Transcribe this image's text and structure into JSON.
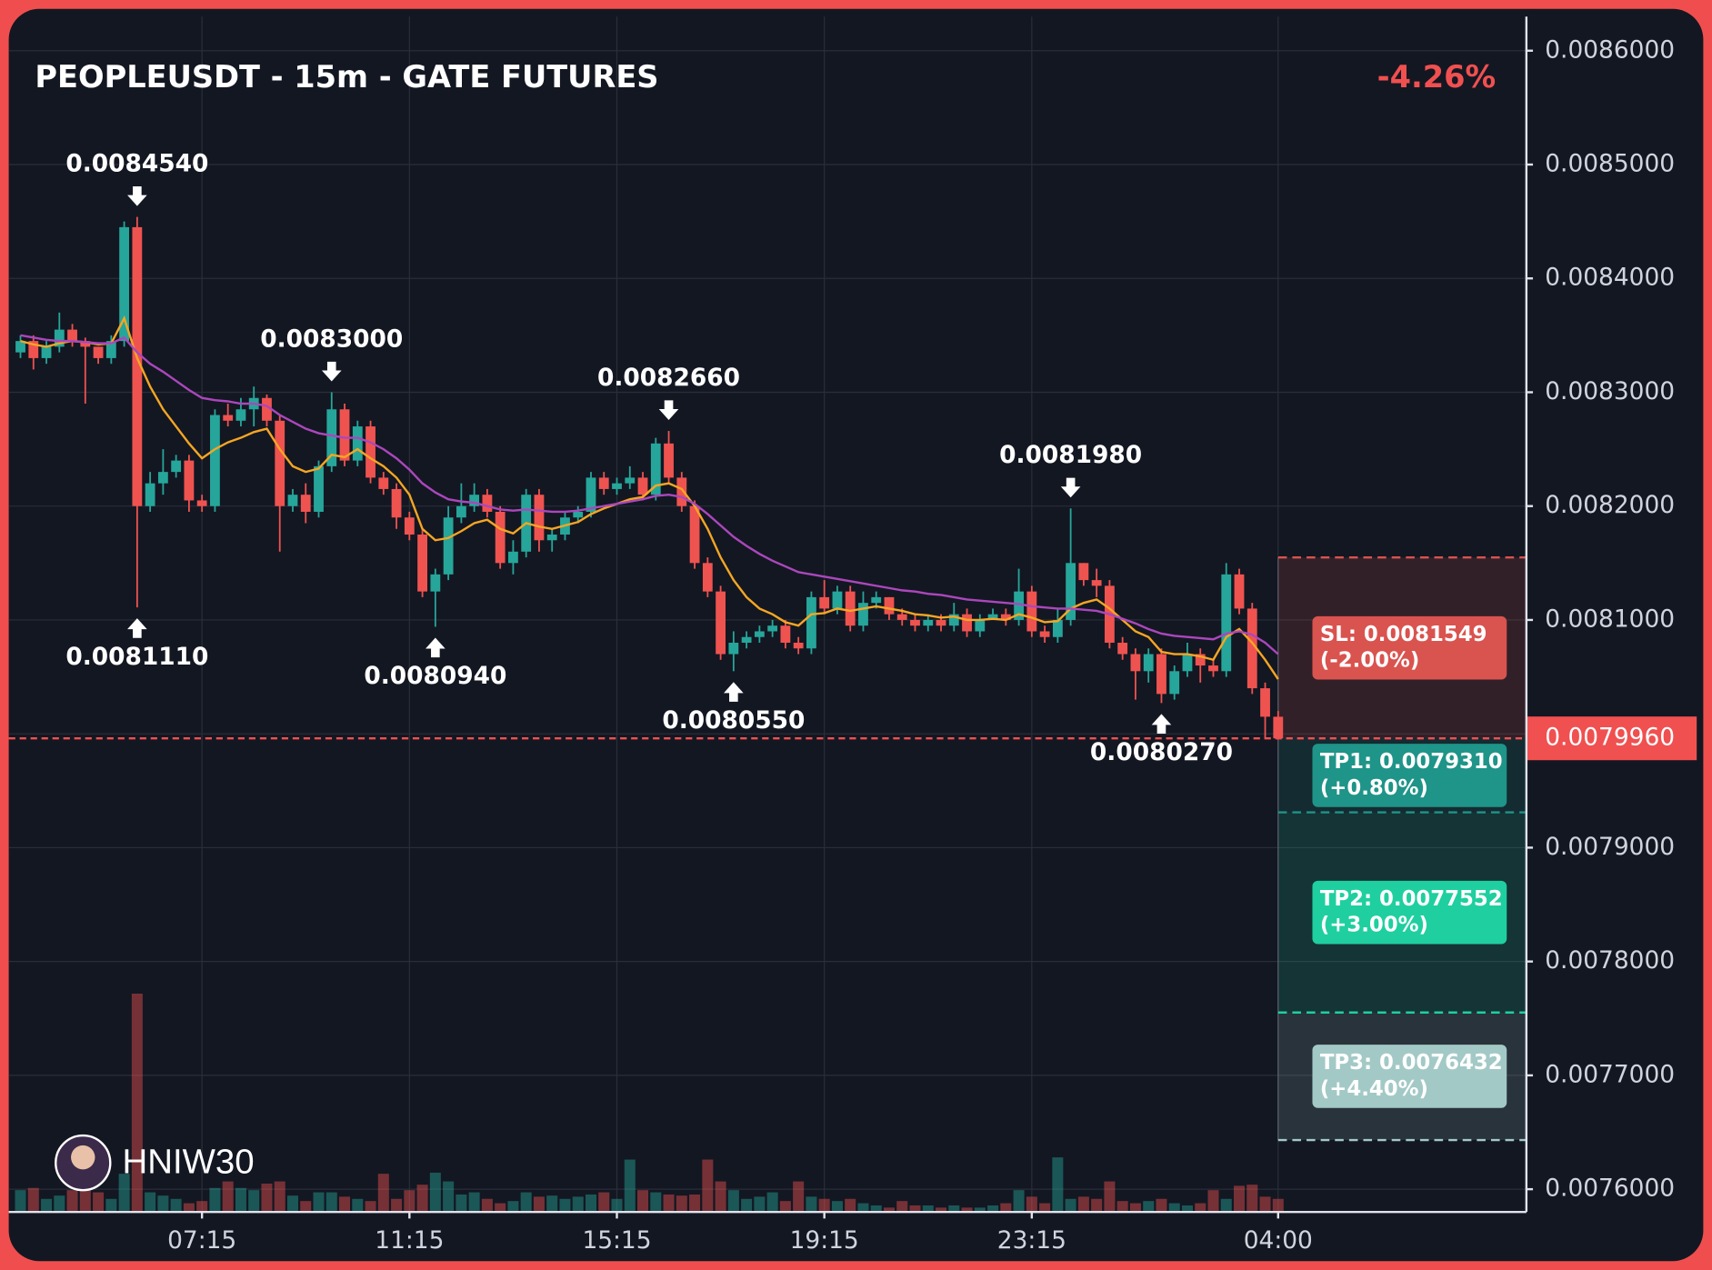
{
  "chart_data": {
    "type": "candlestick",
    "title": "PEOPLEUSDT - 15m - GATE FUTURES",
    "change": "-4.26%",
    "watermark": "HNIW30",
    "up_color": "#26a69a",
    "down_color": "#ef5350",
    "grid": true,
    "categories": [
      null,
      null,
      null,
      null,
      null,
      null,
      null,
      null,
      null,
      null,
      null,
      null,
      null,
      null,
      "07:15",
      null,
      null,
      null,
      null,
      null,
      null,
      null,
      null,
      null,
      null,
      null,
      null,
      null,
      null,
      null,
      "11:15",
      null,
      null,
      null,
      null,
      null,
      null,
      null,
      null,
      null,
      null,
      null,
      null,
      null,
      null,
      null,
      "15:15",
      null,
      null,
      null,
      null,
      null,
      null,
      null,
      null,
      null,
      null,
      null,
      null,
      null,
      null,
      null,
      "19:15",
      null,
      null,
      null,
      null,
      null,
      null,
      null,
      null,
      null,
      null,
      null,
      null,
      null,
      null,
      null,
      "23:15",
      null,
      null,
      null,
      null,
      null,
      null,
      null,
      null,
      null,
      null,
      null,
      null,
      null,
      null,
      null,
      null,
      null,
      null,
      "04:00"
    ],
    "open": [
      0.008335,
      0.008345,
      0.00833,
      0.00834,
      0.008355,
      0.008345,
      0.00834,
      0.00833,
      0.008345,
      0.008445,
      0.0082,
      0.00822,
      0.00823,
      0.00824,
      0.008205,
      0.0082,
      0.00828,
      0.008275,
      0.008285,
      0.008295,
      0.008275,
      0.0082,
      0.00821,
      0.008195,
      0.008235,
      0.008285,
      0.00824,
      0.00827,
      0.008225,
      0.008215,
      0.00819,
      0.008175,
      0.008125,
      0.00814,
      0.00819,
      0.0082,
      0.00821,
      0.008195,
      0.00815,
      0.00816,
      0.00821,
      0.00817,
      0.008175,
      0.00819,
      0.008195,
      0.008225,
      0.008215,
      0.00822,
      0.008225,
      0.00821,
      0.008255,
      0.008225,
      0.0082,
      0.00815,
      0.008125,
      0.00807,
      0.00808,
      0.008085,
      0.00809,
      0.008095,
      0.00808,
      0.008075,
      0.00812,
      0.00811,
      0.008125,
      0.008095,
      0.008115,
      0.00812,
      0.008105,
      0.0081,
      0.008095,
      0.0081,
      0.008095,
      0.008105,
      0.00809,
      0.0081,
      0.008105,
      0.0081,
      0.008125,
      0.00809,
      0.008085,
      0.0081,
      0.00815,
      0.008135,
      0.00813,
      0.00808,
      0.00807,
      0.008055,
      0.00807,
      0.008035,
      0.008055,
      0.00807,
      0.00806,
      0.008055,
      0.00814,
      0.00811,
      0.00804,
      0.008015
    ],
    "high": [
      0.00835,
      0.00835,
      0.008345,
      0.00837,
      0.00836,
      0.008348,
      0.00834,
      0.00835,
      0.00845,
      0.008454,
      0.00823,
      0.00825,
      0.008245,
      0.008245,
      0.00821,
      0.008285,
      0.00829,
      0.008295,
      0.008305,
      0.008298,
      0.00828,
      0.008215,
      0.00822,
      0.00824,
      0.0083,
      0.00829,
      0.008275,
      0.008275,
      0.00823,
      0.00822,
      0.008195,
      0.00818,
      0.008145,
      0.0082,
      0.00822,
      0.00822,
      0.008215,
      0.0082,
      0.00817,
      0.008215,
      0.008215,
      0.00818,
      0.008195,
      0.0082,
      0.00823,
      0.00823,
      0.008225,
      0.008235,
      0.00823,
      0.00826,
      0.008266,
      0.00823,
      0.008205,
      0.008155,
      0.00813,
      0.00809,
      0.00809,
      0.008095,
      0.0081,
      0.0081,
      0.008085,
      0.008125,
      0.008135,
      0.00813,
      0.00813,
      0.008125,
      0.008125,
      0.00812,
      0.00811,
      0.008105,
      0.008105,
      0.008105,
      0.008115,
      0.00811,
      0.008105,
      0.00811,
      0.00811,
      0.008145,
      0.00813,
      0.008095,
      0.00811,
      0.008198,
      0.00815,
      0.008145,
      0.008135,
      0.008085,
      0.008075,
      0.008075,
      0.008075,
      0.00806,
      0.00808,
      0.008075,
      0.008065,
      0.00815,
      0.008145,
      0.008115,
      0.008045,
      0.00802
    ],
    "low": [
      0.00833,
      0.00832,
      0.008325,
      0.008335,
      0.00834,
      0.00829,
      0.008325,
      0.008325,
      0.00834,
      0.008111,
      0.008195,
      0.00821,
      0.008225,
      0.008195,
      0.008195,
      0.008195,
      0.00827,
      0.00827,
      0.00827,
      0.00827,
      0.00816,
      0.008195,
      0.008185,
      0.00819,
      0.00823,
      0.008235,
      0.008235,
      0.00822,
      0.00821,
      0.00818,
      0.00817,
      0.00812,
      0.008094,
      0.008135,
      0.008185,
      0.008195,
      0.00819,
      0.008145,
      0.00814,
      0.008155,
      0.00816,
      0.00816,
      0.00817,
      0.008185,
      0.00819,
      0.00821,
      0.00821,
      0.008215,
      0.008205,
      0.008205,
      0.00822,
      0.008195,
      0.008145,
      0.00812,
      0.008065,
      0.008055,
      0.008075,
      0.00808,
      0.008085,
      0.008075,
      0.00807,
      0.00807,
      0.008105,
      0.008105,
      0.00809,
      0.00809,
      0.00811,
      0.0081,
      0.008095,
      0.00809,
      0.00809,
      0.00809,
      0.00809,
      0.008085,
      0.008085,
      0.0081,
      0.008095,
      0.008095,
      0.008085,
      0.00808,
      0.00808,
      0.008095,
      0.00813,
      0.00812,
      0.008075,
      0.008065,
      0.00803,
      0.008045,
      0.008027,
      0.00803,
      0.00805,
      0.008045,
      0.00805,
      0.00805,
      0.008105,
      0.008035,
      0.007996,
      0.007995
    ],
    "close": [
      0.008345,
      0.00833,
      0.00834,
      0.008355,
      0.008345,
      0.00834,
      0.00833,
      0.008345,
      0.008445,
      0.0082,
      0.00822,
      0.00823,
      0.00824,
      0.008205,
      0.0082,
      0.00828,
      0.008275,
      0.008285,
      0.008295,
      0.008275,
      0.0082,
      0.00821,
      0.008195,
      0.008235,
      0.008285,
      0.00824,
      0.00827,
      0.008225,
      0.008215,
      0.00819,
      0.008175,
      0.008125,
      0.00814,
      0.00819,
      0.0082,
      0.00821,
      0.008195,
      0.00815,
      0.00816,
      0.00821,
      0.00817,
      0.008175,
      0.00819,
      0.008195,
      0.008225,
      0.008215,
      0.00822,
      0.008225,
      0.00821,
      0.008255,
      0.008225,
      0.0082,
      0.00815,
      0.008125,
      0.00807,
      0.00808,
      0.008085,
      0.00809,
      0.008095,
      0.00808,
      0.008075,
      0.00812,
      0.00811,
      0.008125,
      0.008095,
      0.008115,
      0.00812,
      0.008105,
      0.0081,
      0.008095,
      0.0081,
      0.008095,
      0.008105,
      0.00809,
      0.0081,
      0.008105,
      0.0081,
      0.008125,
      0.00809,
      0.008085,
      0.0081,
      0.00815,
      0.008135,
      0.00813,
      0.00808,
      0.00807,
      0.008055,
      0.00807,
      0.008035,
      0.008055,
      0.00807,
      0.00806,
      0.008055,
      0.00814,
      0.00811,
      0.00804,
      0.008015,
      0.007996
    ],
    "volume": [
      20,
      22,
      12,
      15,
      20,
      25,
      18,
      12,
      35,
      200,
      18,
      15,
      12,
      8,
      10,
      22,
      28,
      22,
      20,
      26,
      28,
      15,
      10,
      18,
      18,
      14,
      12,
      10,
      35,
      12,
      20,
      25,
      36,
      28,
      16,
      18,
      12,
      8,
      10,
      18,
      14,
      15,
      12,
      14,
      16,
      18,
      12,
      48,
      20,
      18,
      16,
      15,
      16,
      48,
      28,
      20,
      12,
      14,
      18,
      10,
      28,
      14,
      12,
      10,
      12,
      8,
      6,
      4,
      10,
      6,
      6,
      4,
      6,
      4,
      4,
      6,
      8,
      20,
      14,
      8,
      50,
      12,
      14,
      12,
      28,
      10,
      8,
      10,
      12,
      8,
      6,
      8,
      20,
      12,
      24,
      25,
      14,
      12
    ],
    "lines": [
      {
        "color": "#f5a623",
        "values": [
          0.008345,
          0.008342,
          0.00834,
          0.008343,
          0.008345,
          0.008344,
          0.008342,
          0.008343,
          0.008365,
          0.00833,
          0.008305,
          0.008285,
          0.00827,
          0.008255,
          0.008242,
          0.00825,
          0.008256,
          0.00826,
          0.008265,
          0.008268,
          0.00825,
          0.008235,
          0.00823,
          0.008233,
          0.008245,
          0.008243,
          0.00825,
          0.008242,
          0.008235,
          0.008225,
          0.00821,
          0.00818,
          0.00817,
          0.008172,
          0.008178,
          0.008185,
          0.008188,
          0.00818,
          0.008176,
          0.008185,
          0.008182,
          0.00818,
          0.008183,
          0.008186,
          0.008193,
          0.008198,
          0.008202,
          0.008206,
          0.008208,
          0.008218,
          0.00822,
          0.008215,
          0.0082,
          0.00818,
          0.008155,
          0.008135,
          0.00812,
          0.00811,
          0.008105,
          0.008098,
          0.008095,
          0.008105,
          0.008106,
          0.00811,
          0.008108,
          0.00811,
          0.008112,
          0.00811,
          0.008108,
          0.008105,
          0.008104,
          0.008102,
          0.008103,
          0.0081,
          0.0081,
          0.008101,
          0.0081,
          0.008105,
          0.008102,
          0.008098,
          0.008099,
          0.00811,
          0.008115,
          0.008118,
          0.00811,
          0.0081,
          0.00809,
          0.008085,
          0.008072,
          0.00807,
          0.00807,
          0.008068,
          0.008065,
          0.008085,
          0.008092,
          0.00808,
          0.008065,
          0.008048
        ]
      },
      {
        "color": "#ab47bc",
        "values": [
          0.00835,
          0.008348,
          0.008346,
          0.008345,
          0.008345,
          0.008344,
          0.008343,
          0.008343,
          0.008348,
          0.008335,
          0.008325,
          0.008318,
          0.00831,
          0.008302,
          0.008295,
          0.008293,
          0.008292,
          0.00829,
          0.00829,
          0.008288,
          0.00828,
          0.008274,
          0.008268,
          0.008264,
          0.008262,
          0.00826,
          0.00826,
          0.008256,
          0.00825,
          0.008242,
          0.008232,
          0.00822,
          0.008212,
          0.008206,
          0.008204,
          0.008203,
          0.0082,
          0.008197,
          0.008196,
          0.008197,
          0.008196,
          0.008195,
          0.008195,
          0.008196,
          0.008198,
          0.0082,
          0.008202,
          0.008204,
          0.008206,
          0.008209,
          0.00821,
          0.008208,
          0.008202,
          0.008193,
          0.008183,
          0.008173,
          0.008165,
          0.008158,
          0.008152,
          0.008147,
          0.008142,
          0.00814,
          0.008138,
          0.008136,
          0.008134,
          0.008132,
          0.00813,
          0.008128,
          0.008126,
          0.008125,
          0.008123,
          0.008122,
          0.00812,
          0.008118,
          0.008117,
          0.008116,
          0.008115,
          0.008114,
          0.008112,
          0.008111,
          0.00811,
          0.00811,
          0.008109,
          0.008108,
          0.008105,
          0.008101,
          0.008097,
          0.008092,
          0.008088,
          0.008086,
          0.008085,
          0.008084,
          0.008083,
          0.008088,
          0.00809,
          0.008087,
          0.00808,
          0.00807
        ]
      }
    ],
    "ylim": [
      0.00758,
      0.00863
    ],
    "yticks": [
      {
        "value": 0.0076,
        "label": "0.0076000"
      },
      {
        "value": 0.0077,
        "label": "0.0077000"
      },
      {
        "value": 0.0078,
        "label": "0.0078000"
      },
      {
        "value": 0.0079,
        "label": "0.0079000"
      },
      {
        "value": 0.008,
        "label": "0.0080000"
      },
      {
        "value": 0.0081,
        "label": "0.0081000"
      },
      {
        "value": 0.0082,
        "label": "0.0082000"
      },
      {
        "value": 0.0083,
        "label": "0.0083000"
      },
      {
        "value": 0.0084,
        "label": "0.0084000"
      },
      {
        "value": 0.0085,
        "label": "0.0085000"
      },
      {
        "value": 0.0086,
        "label": "0.0086000"
      }
    ],
    "last": {
      "value": 0.007996,
      "label": "0.0079960",
      "color": "#f05050"
    },
    "annotations": [
      {
        "value": 0.008454,
        "label": "0.0084540"
      },
      {
        "value": 0.008111,
        "label": "0.0081110"
      },
      {
        "value": 0.0083,
        "label": "0.0083000"
      },
      {
        "value": 0.008094,
        "label": "0.0080940"
      },
      {
        "value": 0.008266,
        "label": "0.0082660"
      },
      {
        "value": 0.008055,
        "label": "0.0080550"
      },
      {
        "value": 0.008198,
        "label": "0.0081980"
      },
      {
        "value": 0.008027,
        "label": "0.0080270"
      }
    ],
    "levels": [
      {
        "label": "SL: 0.0081549",
        "note": "(-2.00%)",
        "value": 0.0081549,
        "color": "#d9534f"
      },
      {
        "label": "TP1: 0.0079310",
        "note": "(+0.80%)",
        "value": 0.007931,
        "color": "#1f9488"
      },
      {
        "label": "TP2: 0.0077552",
        "note": "(+3.00%)",
        "value": 0.0077552,
        "color": "#1fcf9f"
      },
      {
        "label": "TP3: 0.0076432",
        "note": "(+4.40%)",
        "value": 0.0076432,
        "color": "#a3c9c6"
      }
    ]
  }
}
